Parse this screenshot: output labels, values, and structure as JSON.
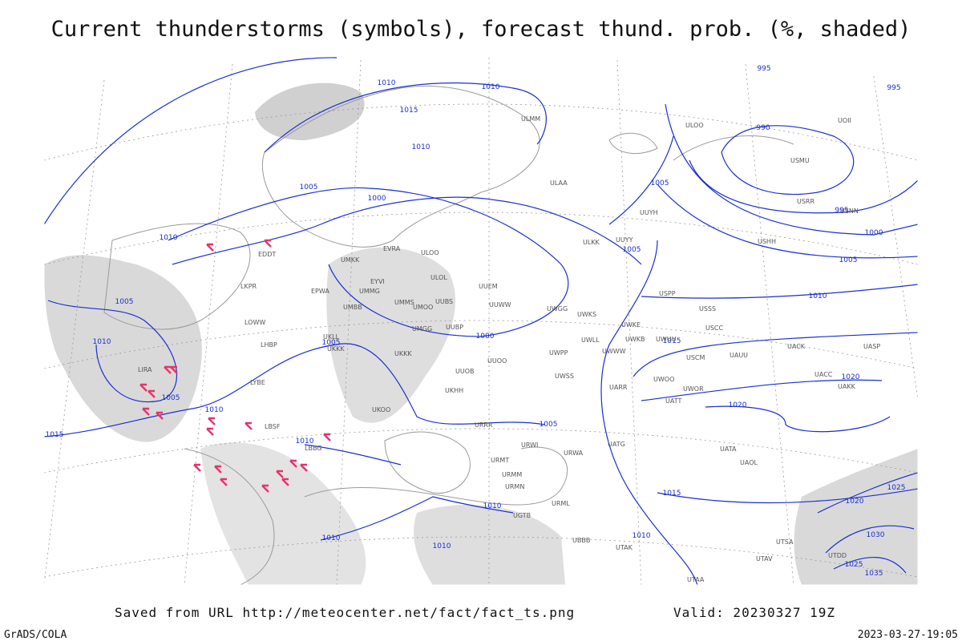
{
  "title": "Current thunderstorms (symbols), forecast thund. prob. (%, shaded)",
  "footer": {
    "source": "Saved from URL http://meteocenter.net/fact/fact_ts.png",
    "valid": "Valid: 20230327 19Z",
    "credit": "GrADS/COLA",
    "timestamp": "2023-03-27-19:05"
  },
  "isobar_labels": [
    1010,
    1010,
    1015,
    1010,
    1005,
    1000,
    1010,
    1005,
    1010,
    1005,
    1000,
    1005,
    1015,
    1010,
    1010,
    1005,
    1005,
    1005,
    995,
    995,
    990,
    995,
    1000,
    1005,
    1010,
    1015,
    1020,
    1020,
    1015,
    1010,
    1010,
    1010,
    1010,
    1025,
    1020,
    1030,
    1025,
    1035
  ],
  "stations": [
    "ULMM",
    "ULOO",
    "UOII",
    "ULAA",
    "UUYH",
    "ULKK",
    "UUYY",
    "EVRA",
    "ULOO",
    "UMKK",
    "ULOL",
    "EYVI",
    "UMMG",
    "UUEM",
    "EPWA",
    "UMMS",
    "UMOO",
    "UUBS",
    "UUWW",
    "UMBB",
    "UWGG",
    "USPP",
    "USSS",
    "USCC",
    "UMGG",
    "UUBP",
    "UWKS",
    "UWKE",
    "UWLL",
    "UWKB",
    "UWUU",
    "UKLL",
    "UKKK",
    "UUOO",
    "UWPP",
    "UWWW",
    "USCM",
    "UAUU",
    "UACK",
    "UASP",
    "UUOB",
    "UWSS",
    "UKHH",
    "UACC",
    "UAKK",
    "UATT",
    "UWOO",
    "UWOR",
    "UARR",
    "UATG",
    "URRR",
    "URWI",
    "URWA",
    "URMT",
    "URMM",
    "URMN",
    "URML",
    "UGTB",
    "UBBB",
    "UTAK",
    "UTAV",
    "UTSA",
    "UTDD",
    "UTAA",
    "UATA",
    "UAOL",
    "USMU",
    "USRR",
    "USNN",
    "USHH",
    "LIRA",
    "LBSF",
    "LBBG",
    "EDDT",
    "LKPR",
    "LOWW",
    "LHBP",
    "LYBE",
    "UKKK",
    "UKOO"
  ]
}
